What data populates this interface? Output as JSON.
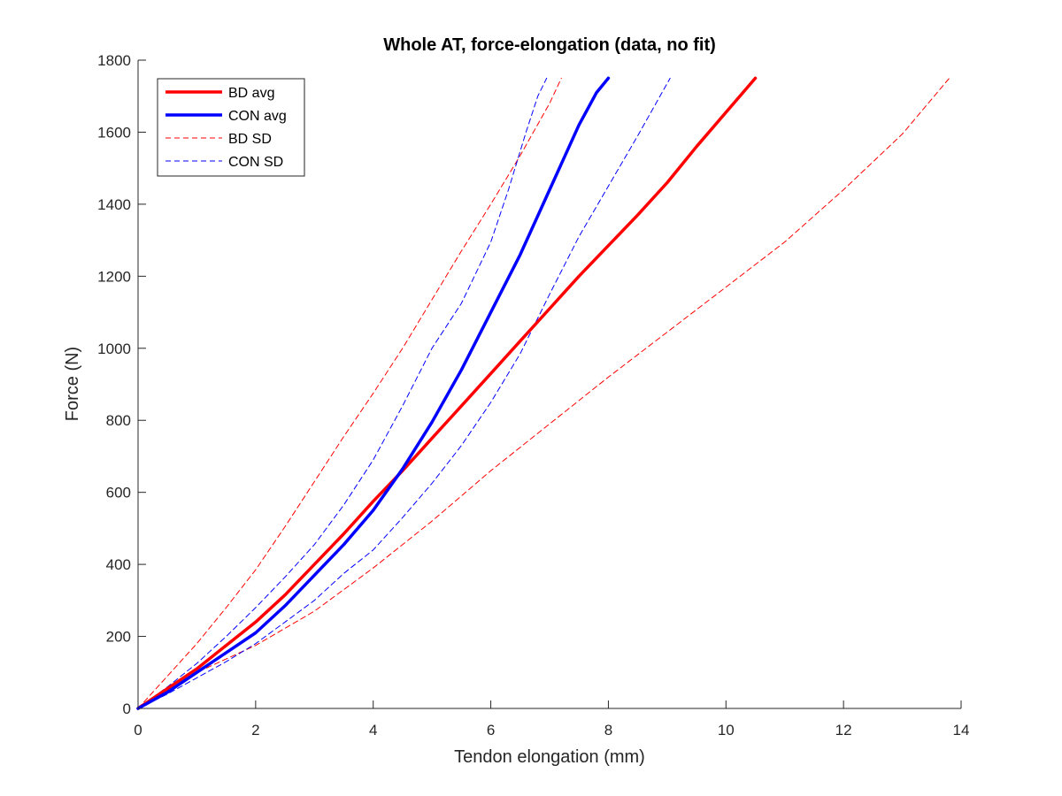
{
  "chart_data": {
    "type": "line",
    "title": "Whole AT, force-elongation (data, no fit)",
    "xlabel": "Tendon elongation (mm)",
    "ylabel": "Force (N)",
    "xlim": [
      0,
      14
    ],
    "ylim": [
      0,
      1800
    ],
    "xticks": [
      "0",
      "2",
      "4",
      "6",
      "8",
      "10",
      "12",
      "14"
    ],
    "yticks": [
      "0",
      "200",
      "400",
      "600",
      "800",
      "1000",
      "1200",
      "1400",
      "1600",
      "1800"
    ],
    "grid": false,
    "legend_position": "top-left",
    "series": [
      {
        "name": "BD avg",
        "color": "#ff0000",
        "style": "solid",
        "x": [
          0,
          0.5,
          1.0,
          1.5,
          2.0,
          2.5,
          3.0,
          3.5,
          4.0,
          4.5,
          5.0,
          5.5,
          6.0,
          6.5,
          7.0,
          7.5,
          8.0,
          8.5,
          9.0,
          9.5,
          10.0,
          10.5
        ],
        "y": [
          0,
          55,
          110,
          175,
          240,
          315,
          400,
          485,
          575,
          660,
          750,
          840,
          930,
          1020,
          1110,
          1200,
          1285,
          1370,
          1460,
          1560,
          1655,
          1750
        ]
      },
      {
        "name": "CON avg",
        "color": "#0000ff",
        "style": "solid",
        "x": [
          0,
          0.5,
          1.0,
          1.5,
          2.0,
          2.5,
          3.0,
          3.5,
          4.0,
          4.5,
          5.0,
          5.5,
          6.0,
          6.5,
          7.0,
          7.5,
          7.8,
          8.0
        ],
        "y": [
          0,
          45,
          100,
          155,
          210,
          285,
          370,
          455,
          550,
          665,
          795,
          940,
          1100,
          1260,
          1440,
          1620,
          1710,
          1750
        ]
      },
      {
        "name": "BD SD",
        "color": "#ff0000",
        "style": "dashed",
        "x": [
          0,
          0.5,
          1.0,
          1.5,
          2.0,
          2.5,
          3.0,
          3.5,
          4.0,
          4.5,
          5.0,
          5.5,
          6.0,
          6.5,
          7.0,
          7.2
        ],
        "y": [
          0,
          90,
          180,
          280,
          385,
          505,
          630,
          755,
          875,
          1000,
          1135,
          1270,
          1400,
          1535,
          1680,
          1750
        ]
      },
      {
        "name": "BD SD",
        "color": "#ff0000",
        "style": "dashed",
        "x": [
          0,
          1.0,
          2.0,
          3.0,
          4.0,
          5.0,
          6.0,
          7.0,
          8.0,
          9.0,
          10.0,
          11.0,
          12.0,
          13.0,
          13.8
        ],
        "y": [
          0,
          100,
          175,
          270,
          390,
          520,
          660,
          790,
          920,
          1045,
          1170,
          1295,
          1440,
          1595,
          1750
        ]
      },
      {
        "name": "CON SD",
        "color": "#0000ff",
        "style": "dashed",
        "x": [
          0,
          0.5,
          1.0,
          1.5,
          2.0,
          2.5,
          3.0,
          3.5,
          4.0,
          4.5,
          5.0,
          5.5,
          6.0,
          6.3,
          6.6,
          6.8,
          6.95
        ],
        "y": [
          0,
          60,
          125,
          200,
          280,
          365,
          455,
          565,
          690,
          840,
          1000,
          1125,
          1295,
          1440,
          1600,
          1700,
          1750
        ]
      },
      {
        "name": "CON SD",
        "color": "#0000ff",
        "style": "dashed",
        "x": [
          0,
          0.5,
          1.0,
          1.5,
          2.0,
          2.5,
          3.0,
          3.5,
          4.0,
          4.5,
          5.0,
          5.5,
          6.0,
          6.5,
          7.0,
          7.5,
          8.0,
          8.5,
          9.05
        ],
        "y": [
          0,
          40,
          85,
          130,
          180,
          240,
          300,
          375,
          440,
          530,
          625,
          730,
          850,
          985,
          1150,
          1310,
          1450,
          1590,
          1750
        ]
      }
    ],
    "legend": [
      {
        "label": "BD avg",
        "color": "#ff0000",
        "style": "solid"
      },
      {
        "label": "CON avg",
        "color": "#0000ff",
        "style": "solid"
      },
      {
        "label": "BD SD",
        "color": "#ff0000",
        "style": "dashed"
      },
      {
        "label": "CON SD",
        "color": "#0000ff",
        "style": "dashed"
      }
    ]
  }
}
